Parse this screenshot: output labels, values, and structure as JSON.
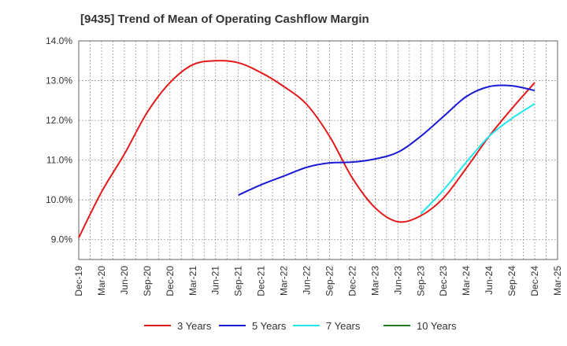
{
  "chart_data": {
    "type": "line",
    "title": "[9435]  Trend of Mean of Operating Cashflow Margin",
    "xlabel": "",
    "ylabel": "",
    "x": [
      "Dec-19",
      "Mar-20",
      "Jun-20",
      "Sep-20",
      "Dec-20",
      "Mar-21",
      "Jun-21",
      "Sep-21",
      "Dec-21",
      "Mar-22",
      "Jun-22",
      "Sep-22",
      "Dec-22",
      "Mar-23",
      "Jun-23",
      "Sep-23",
      "Dec-23",
      "Mar-24",
      "Jun-24",
      "Sep-24",
      "Dec-24",
      "Mar-25"
    ],
    "yticks": [
      "9.0%",
      "10.0%",
      "11.0%",
      "12.0%",
      "13.0%",
      "14.0%"
    ],
    "ylim": [
      8.5,
      14.0
    ],
    "grid": true,
    "legend_position": "bottom",
    "series": [
      {
        "name": "3 Years",
        "color": "#e31a1c",
        "values": [
          9.05,
          10.2,
          11.15,
          12.2,
          12.95,
          13.4,
          13.5,
          13.45,
          13.2,
          12.85,
          12.4,
          11.6,
          10.55,
          9.8,
          9.45,
          9.6,
          10.05,
          10.8,
          11.6,
          12.3,
          12.95,
          null
        ]
      },
      {
        "name": "5 Years",
        "color": "#1a1ad4",
        "values": [
          null,
          null,
          null,
          null,
          null,
          null,
          null,
          10.12,
          10.38,
          10.6,
          10.82,
          10.93,
          10.95,
          11.03,
          11.2,
          11.6,
          12.1,
          12.6,
          12.85,
          12.87,
          12.75,
          null
        ]
      },
      {
        "name": "7 Years",
        "color": "#22e5ee",
        "values": [
          null,
          null,
          null,
          null,
          null,
          null,
          null,
          null,
          null,
          null,
          null,
          null,
          null,
          null,
          null,
          9.65,
          10.25,
          10.95,
          11.6,
          12.05,
          12.42,
          null
        ]
      },
      {
        "name": "10 Years",
        "color": "#1f7a1f",
        "values": [
          null,
          null,
          null,
          null,
          null,
          null,
          null,
          null,
          null,
          null,
          null,
          null,
          null,
          null,
          null,
          null,
          null,
          null,
          null,
          null,
          null,
          null
        ]
      }
    ]
  }
}
